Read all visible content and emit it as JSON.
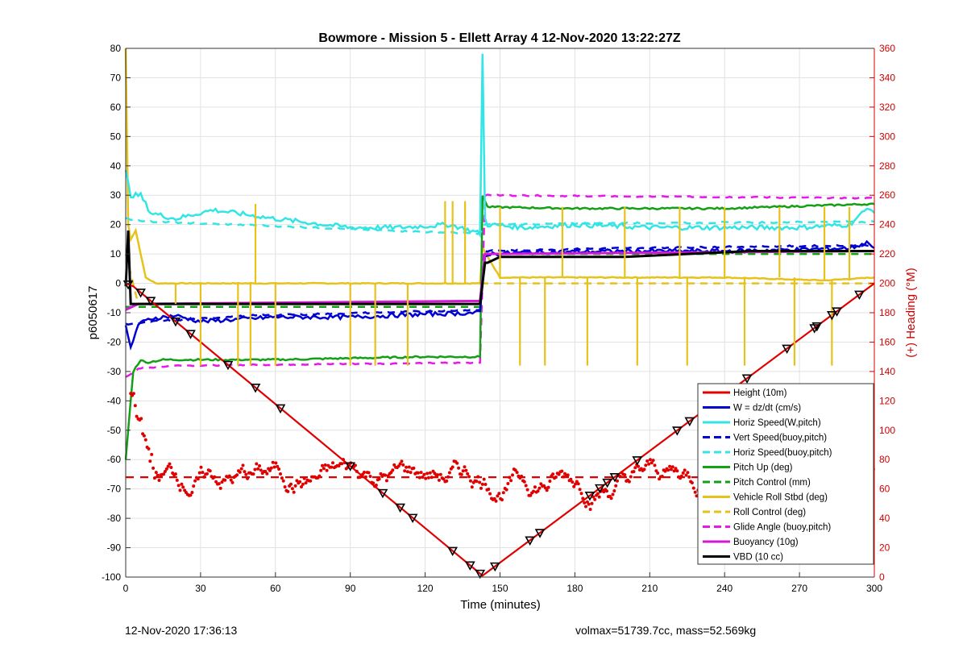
{
  "chart_data": {
    "type": "line",
    "title": "Bowmore - Mission 5 - Ellett Array 4 12-Nov-2020 13:22:27Z",
    "xlabel": "Time (minutes)",
    "ylabel_left": "p6050617",
    "ylabel_right": "(+) Heading (°M)",
    "xlim": [
      0,
      300
    ],
    "ylim_left": [
      -100,
      80
    ],
    "ylim_right": [
      0,
      360
    ],
    "xticks": [
      "0",
      "30",
      "60",
      "90",
      "120",
      "150",
      "180",
      "210",
      "240",
      "270",
      "300"
    ],
    "yticks_left": [
      "80",
      "70",
      "60",
      "50",
      "40",
      "30",
      "20",
      "10",
      "0",
      "-10",
      "-20",
      "-30",
      "-40",
      "-50",
      "-60",
      "-70",
      "-80",
      "-90",
      "-100"
    ],
    "yticks_right": [
      "360",
      "340",
      "320",
      "300",
      "280",
      "260",
      "240",
      "220",
      "200",
      "180",
      "160",
      "140",
      "120",
      "100",
      "80",
      "60",
      "40",
      "20",
      "0"
    ],
    "grid": true,
    "legend_position": "bottom-right",
    "colors": {
      "height": "#e00000",
      "w": "#0000d0",
      "horiz_w": "#33e5e5",
      "vert_buoy": "#0000d0",
      "horiz_buoy": "#33e5e5",
      "pitch_up": "#14a014",
      "pitch_ctrl": "#14a014",
      "roll": "#e6c21a",
      "roll_ctrl": "#e6c21a",
      "glide": "#e619e6",
      "buoy": "#d21ad2",
      "vbd": "#000000",
      "heading": "#e00000",
      "right_axis": "#d00000"
    },
    "series": [
      {
        "name": "Height (10m)",
        "style": "solid",
        "key": "height",
        "x": [
          0,
          3,
          143,
          300
        ],
        "y": [
          0,
          -1,
          -99.5,
          0
        ]
      },
      {
        "name": "W = dz/dt (cm/s)",
        "style": "solid",
        "key": "w",
        "x": [
          0,
          2,
          5,
          10,
          20,
          30,
          60,
          90,
          120,
          142,
          144,
          145,
          160,
          180,
          210,
          240,
          270,
          290,
          298,
          300
        ],
        "y": [
          -15,
          -22,
          -14,
          -12,
          -11,
          -13,
          -11.5,
          -11.5,
          -10.5,
          -10,
          9,
          10,
          10.5,
          10.8,
          11,
          11,
          11.5,
          12,
          14,
          12
        ]
      },
      {
        "name": "Horiz Speed(W,pitch)",
        "style": "solid",
        "key": "horiz_w",
        "x": [
          0,
          2,
          6,
          10,
          20,
          35,
          60,
          90,
          110,
          130,
          142,
          143,
          144,
          145,
          160,
          180,
          210,
          240,
          270,
          290,
          298,
          300
        ],
        "y": [
          38,
          30,
          30,
          24,
          22,
          25,
          22,
          19,
          19,
          20,
          17,
          78,
          22,
          20,
          19,
          20,
          19,
          19,
          19,
          20,
          26,
          24
        ]
      },
      {
        "name": "Vert Speed(buoy,pitch)",
        "style": "dashed",
        "key": "vert_buoy",
        "x": [
          0,
          10,
          50,
          100,
          142,
          144,
          200,
          300
        ],
        "y": [
          -14,
          -13,
          -11,
          -10,
          -9,
          11,
          12,
          13
        ]
      },
      {
        "name": "Horiz Speed(buoy,pitch)",
        "style": "dashed",
        "key": "horiz_buoy",
        "x": [
          0,
          10,
          60,
          120,
          142,
          144,
          200,
          300
        ],
        "y": [
          22,
          21,
          19.5,
          17.5,
          17,
          20,
          20.5,
          21
        ]
      },
      {
        "name": "Pitch Up (deg)",
        "style": "solid",
        "key": "pitch_up",
        "x": [
          0,
          3,
          6,
          8,
          15,
          60,
          120,
          142,
          143,
          145,
          180,
          240,
          298,
          300
        ],
        "y": [
          -60,
          -30,
          -26,
          -27,
          -26,
          -26,
          -25,
          -25,
          30,
          26,
          25.5,
          25.5,
          27,
          27
        ]
      },
      {
        "name": "Pitch Control (mm)",
        "style": "dashed",
        "key": "pitch_ctrl",
        "x": [
          0,
          5,
          142,
          144,
          300
        ],
        "y": [
          -8,
          -8,
          -8,
          10,
          10
        ]
      },
      {
        "name": "Vehicle Roll Stbd (deg)",
        "style": "solid",
        "key": "roll",
        "x": [
          0,
          1,
          2,
          4,
          8,
          12,
          60,
          120,
          140,
          142,
          143,
          150,
          180,
          240,
          280,
          300
        ],
        "y": [
          80,
          20,
          15,
          18,
          2,
          0,
          0,
          0,
          0,
          0,
          12,
          2,
          2,
          2,
          1,
          2
        ]
      },
      {
        "name": "Roll Control (deg)",
        "style": "dashed",
        "key": "roll_ctrl",
        "x": [
          0,
          5,
          142,
          143,
          300
        ],
        "y": [
          10,
          -7,
          -7,
          0,
          0
        ]
      },
      {
        "name": "Glide Angle (buoy,pitch)",
        "style": "dashed",
        "key": "glide",
        "x": [
          0,
          5,
          20,
          142,
          144,
          300
        ],
        "y": [
          -32,
          -29,
          -28,
          -27,
          30,
          29
        ]
      },
      {
        "name": "Buoyancy (10g)",
        "style": "solid",
        "key": "buoy",
        "x": [
          0,
          5,
          142,
          144,
          300
        ],
        "y": [
          -9,
          -7,
          -6,
          10,
          11
        ]
      },
      {
        "name": "VBD (10 cc)",
        "style": "solid",
        "key": "vbd",
        "x": [
          0,
          1,
          2,
          142,
          144,
          145,
          150,
          200,
          250,
          300
        ],
        "y": [
          -1,
          18,
          -7,
          -7,
          7,
          7,
          9,
          9,
          11,
          11
        ]
      }
    ],
    "heading_series": {
      "axis": "right",
      "style": "dots",
      "mean_heading": 68
    },
    "footer_left": "12-Nov-2020 17:36:13",
    "footer_right": "volmax=51739.7cc, mass=52.569kg"
  }
}
